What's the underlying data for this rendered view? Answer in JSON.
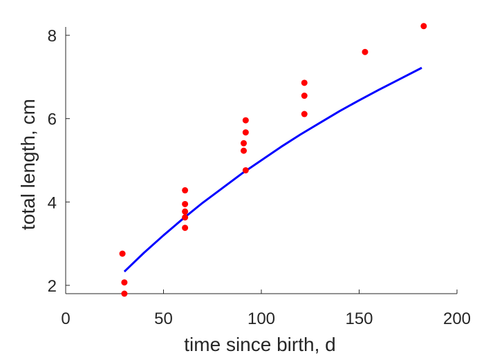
{
  "chart_data": {
    "type": "scatter",
    "title": "",
    "xlabel": "time since birth, d",
    "ylabel": "total length, cm",
    "xlim": [
      0,
      200
    ],
    "ylim": [
      1.8,
      8.2
    ],
    "xticks": [
      0,
      50,
      100,
      150,
      200
    ],
    "yticks": [
      2,
      4,
      6,
      8
    ],
    "xtick_labels": [
      "0",
      "50",
      "100",
      "150",
      "200"
    ],
    "ytick_labels": [
      "2",
      "4",
      "6",
      "8"
    ],
    "grid": false,
    "legend": false,
    "series": [
      {
        "kind": "points",
        "color": "#ff0000",
        "points": [
          [
            29,
            2.76
          ],
          [
            30,
            2.07
          ],
          [
            30,
            1.8
          ],
          [
            61,
            4.28
          ],
          [
            61,
            3.95
          ],
          [
            61,
            3.77
          ],
          [
            61,
            3.63
          ],
          [
            61,
            3.38
          ],
          [
            92,
            5.96
          ],
          [
            92,
            5.67
          ],
          [
            91,
            5.41
          ],
          [
            91,
            5.23
          ],
          [
            92,
            4.76
          ],
          [
            122,
            6.86
          ],
          [
            122,
            6.55
          ],
          [
            122,
            6.11
          ],
          [
            153,
            7.6
          ],
          [
            183,
            8.22
          ]
        ]
      },
      {
        "kind": "line",
        "color": "#0000ff",
        "points": [
          [
            30,
            2.33
          ],
          [
            40,
            2.78
          ],
          [
            50,
            3.2
          ],
          [
            60,
            3.6
          ],
          [
            70,
            3.98
          ],
          [
            80,
            4.33
          ],
          [
            90,
            4.68
          ],
          [
            100,
            5.0
          ],
          [
            110,
            5.32
          ],
          [
            120,
            5.62
          ],
          [
            130,
            5.9
          ],
          [
            140,
            6.18
          ],
          [
            150,
            6.44
          ],
          [
            160,
            6.69
          ],
          [
            170,
            6.93
          ],
          [
            182,
            7.22
          ]
        ]
      }
    ]
  }
}
